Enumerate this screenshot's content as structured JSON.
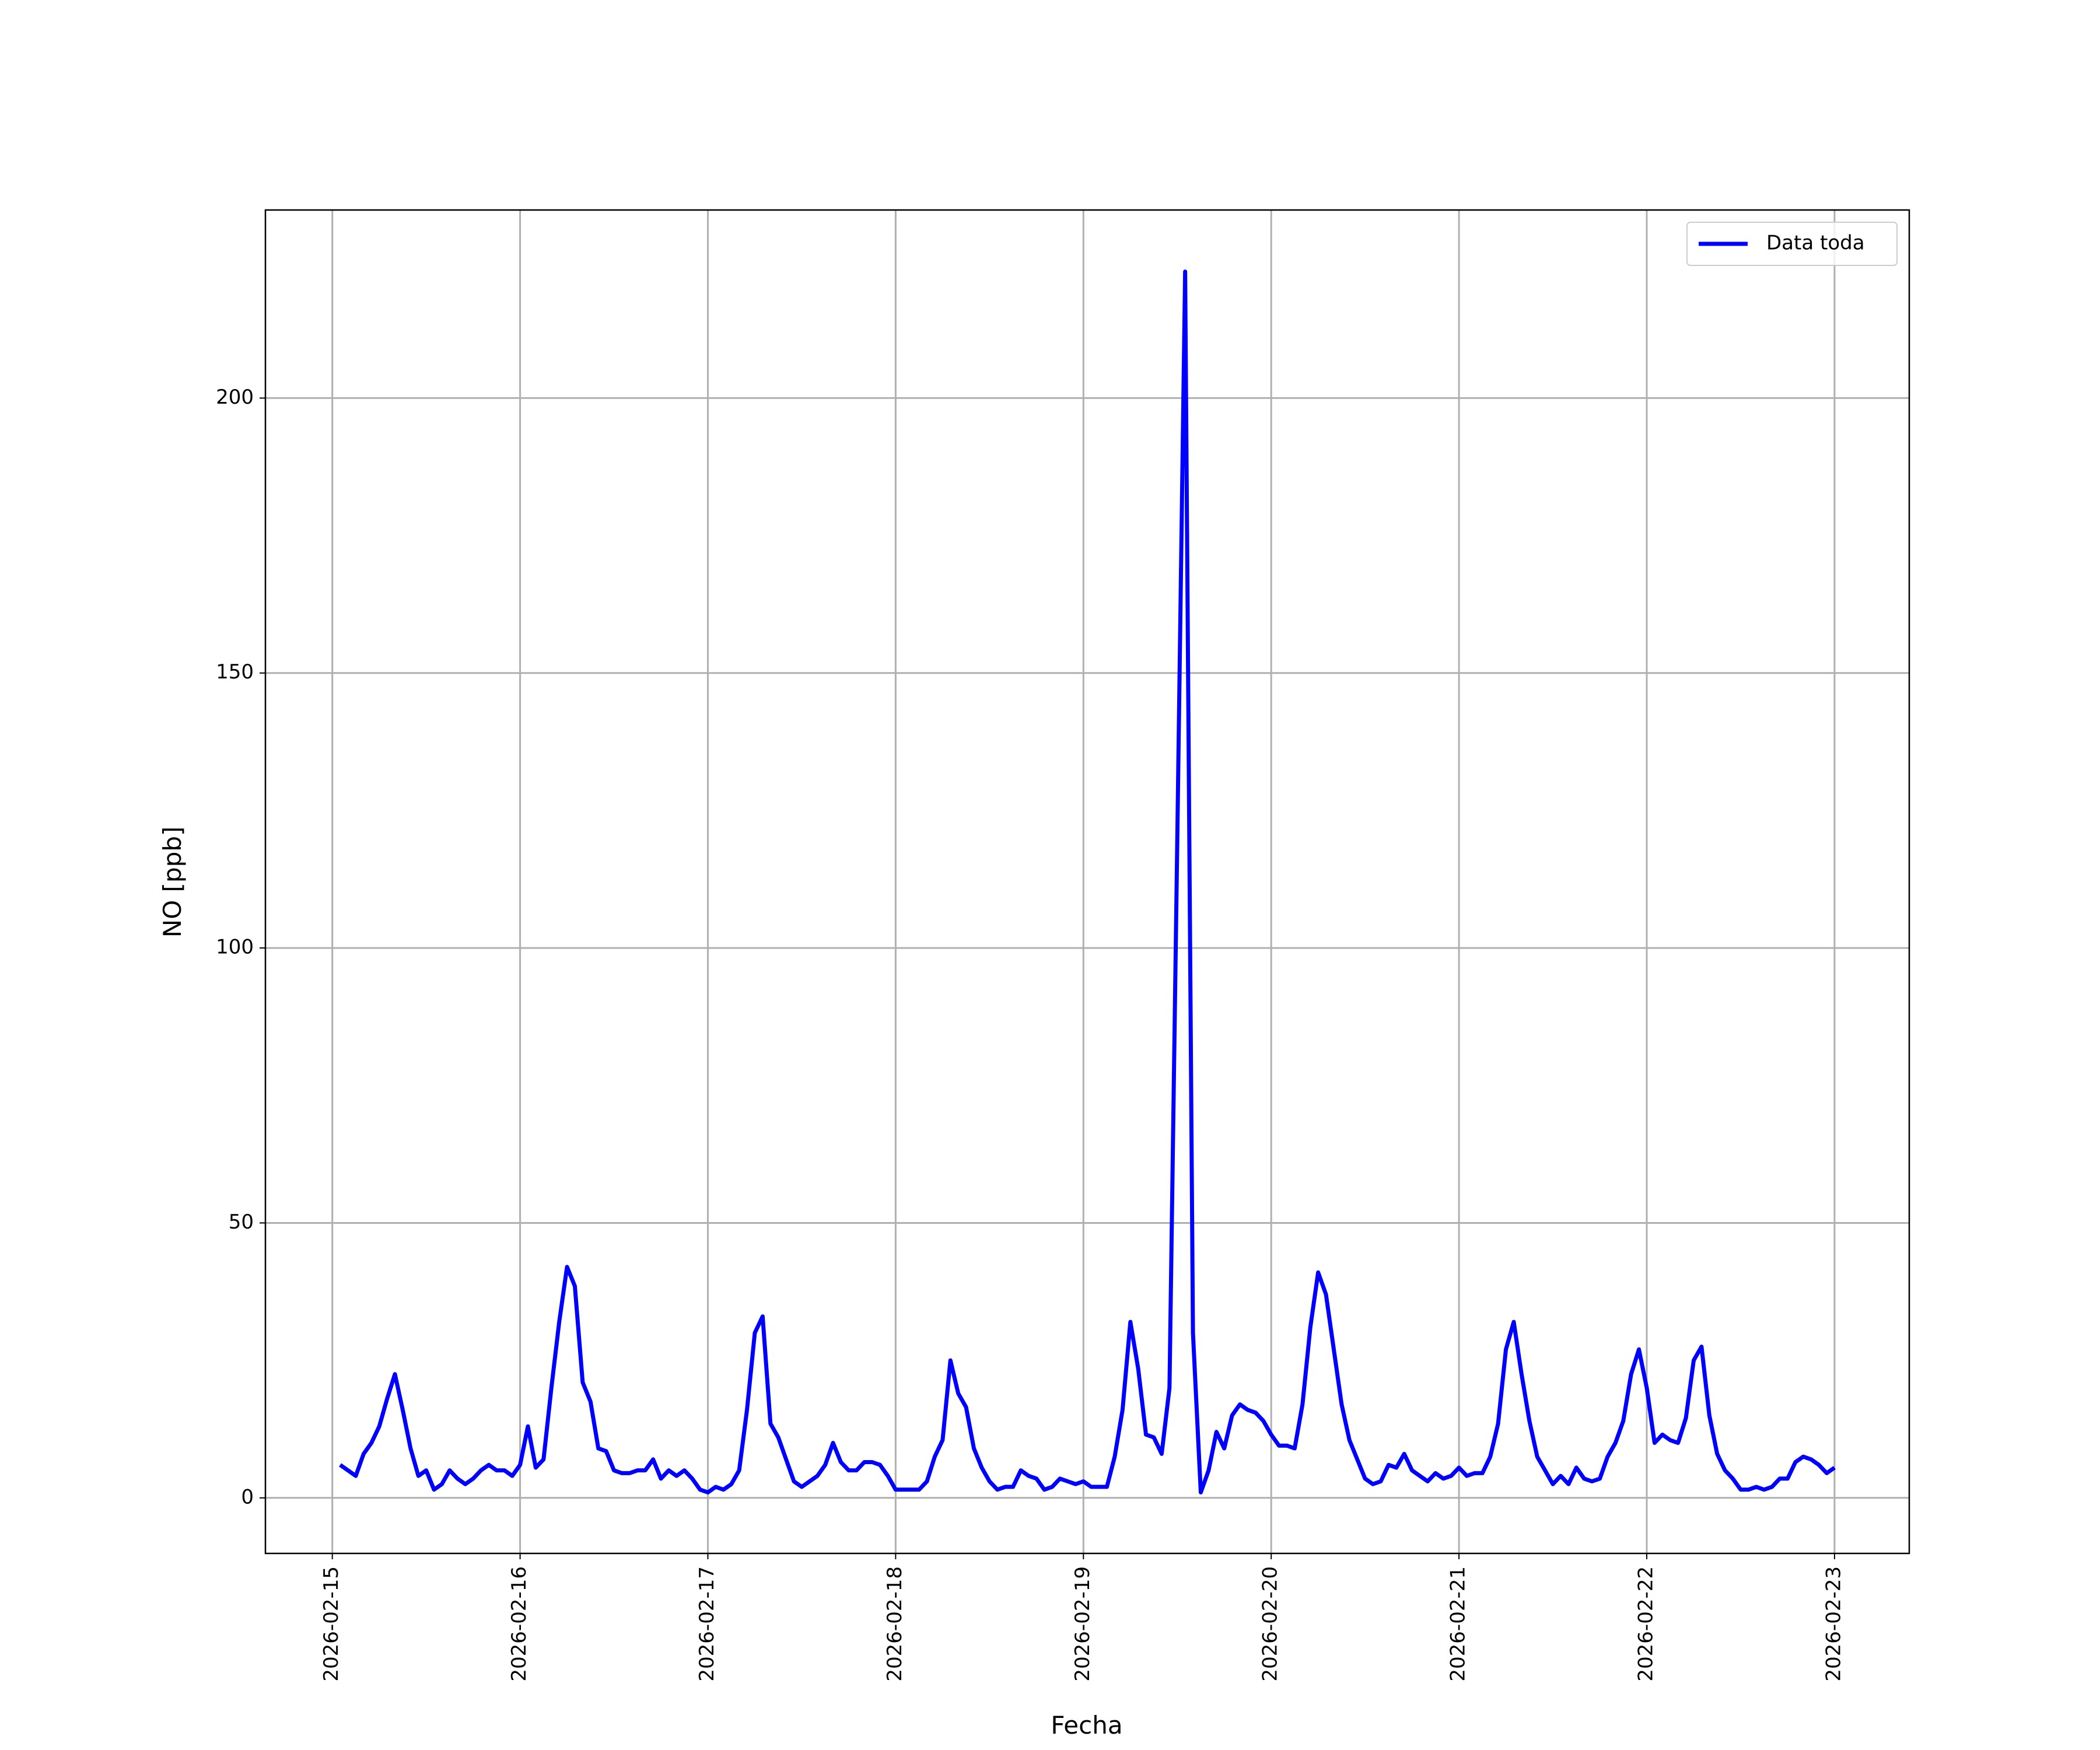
{
  "chart_data": {
    "type": "line",
    "xlabel": "Fecha",
    "ylabel": "NO [ppb]",
    "grid": true,
    "legend": "upper right",
    "x": [
      "2026-02-15 01:00",
      "2026-02-15 02:00",
      "2026-02-15 03:00",
      "2026-02-15 04:00",
      "2026-02-15 05:00",
      "2026-02-15 06:00",
      "2026-02-15 07:00",
      "2026-02-15 08:00",
      "2026-02-15 09:00",
      "2026-02-15 10:00",
      "2026-02-15 11:00",
      "2026-02-15 12:00",
      "2026-02-15 13:00",
      "2026-02-15 14:00",
      "2026-02-15 15:00",
      "2026-02-15 16:00",
      "2026-02-15 17:00",
      "2026-02-15 18:00",
      "2026-02-15 19:00",
      "2026-02-15 20:00",
      "2026-02-15 21:00",
      "2026-02-15 22:00",
      "2026-02-15 23:00",
      "2026-02-16 00:00",
      "2026-02-16 01:00",
      "2026-02-16 02:00",
      "2026-02-16 03:00",
      "2026-02-16 04:00",
      "2026-02-16 05:00",
      "2026-02-16 06:00",
      "2026-02-16 07:00",
      "2026-02-16 08:00",
      "2026-02-16 09:00",
      "2026-02-16 10:00",
      "2026-02-16 11:00",
      "2026-02-16 12:00",
      "2026-02-16 13:00",
      "2026-02-16 14:00",
      "2026-02-16 15:00",
      "2026-02-16 16:00",
      "2026-02-16 17:00",
      "2026-02-16 18:00",
      "2026-02-16 19:00",
      "2026-02-16 20:00",
      "2026-02-16 21:00",
      "2026-02-16 22:00",
      "2026-02-16 23:00",
      "2026-02-17 00:00",
      "2026-02-17 01:00",
      "2026-02-17 02:00",
      "2026-02-17 03:00",
      "2026-02-17 04:00",
      "2026-02-17 05:00",
      "2026-02-17 06:00",
      "2026-02-17 07:00",
      "2026-02-17 08:00",
      "2026-02-17 09:00",
      "2026-02-17 10:00",
      "2026-02-17 11:00",
      "2026-02-17 12:00",
      "2026-02-17 13:00",
      "2026-02-17 14:00",
      "2026-02-17 15:00",
      "2026-02-17 16:00",
      "2026-02-17 17:00",
      "2026-02-17 18:00",
      "2026-02-17 19:00",
      "2026-02-17 20:00",
      "2026-02-17 21:00",
      "2026-02-17 22:00",
      "2026-02-17 23:00",
      "2026-02-18 00:00",
      "2026-02-18 01:00",
      "2026-02-18 02:00",
      "2026-02-18 03:00",
      "2026-02-18 04:00",
      "2026-02-18 05:00",
      "2026-02-18 06:00",
      "2026-02-18 07:00",
      "2026-02-18 08:00",
      "2026-02-18 09:00",
      "2026-02-18 10:00",
      "2026-02-18 11:00",
      "2026-02-18 12:00",
      "2026-02-18 13:00",
      "2026-02-18 14:00",
      "2026-02-18 15:00",
      "2026-02-18 16:00",
      "2026-02-18 17:00",
      "2026-02-18 18:00",
      "2026-02-18 19:00",
      "2026-02-18 20:00",
      "2026-02-18 21:00",
      "2026-02-18 22:00",
      "2026-02-18 23:00",
      "2026-02-19 00:00",
      "2026-02-19 01:00",
      "2026-02-19 02:00",
      "2026-02-19 03:00",
      "2026-02-19 04:00",
      "2026-02-19 05:00",
      "2026-02-19 06:00",
      "2026-02-19 07:00",
      "2026-02-19 08:00",
      "2026-02-19 09:00",
      "2026-02-19 10:00",
      "2026-02-19 11:00",
      "2026-02-19 12:00",
      "2026-02-19 13:00",
      "2026-02-19 14:00",
      "2026-02-19 15:00",
      "2026-02-19 16:00",
      "2026-02-19 17:00",
      "2026-02-19 18:00",
      "2026-02-19 19:00",
      "2026-02-19 20:00",
      "2026-02-19 21:00",
      "2026-02-19 22:00",
      "2026-02-19 23:00",
      "2026-02-20 00:00",
      "2026-02-20 01:00",
      "2026-02-20 02:00",
      "2026-02-20 03:00",
      "2026-02-20 04:00",
      "2026-02-20 05:00",
      "2026-02-20 06:00",
      "2026-02-20 07:00",
      "2026-02-20 08:00",
      "2026-02-20 09:00",
      "2026-02-20 10:00",
      "2026-02-20 11:00",
      "2026-02-20 12:00",
      "2026-02-20 13:00",
      "2026-02-20 14:00",
      "2026-02-20 15:00",
      "2026-02-20 16:00",
      "2026-02-20 17:00",
      "2026-02-20 18:00",
      "2026-02-20 19:00",
      "2026-02-20 20:00",
      "2026-02-20 21:00",
      "2026-02-20 22:00",
      "2026-02-20 23:00",
      "2026-02-21 00:00",
      "2026-02-21 01:00",
      "2026-02-21 02:00",
      "2026-02-21 03:00",
      "2026-02-21 04:00",
      "2026-02-21 05:00",
      "2026-02-21 06:00",
      "2026-02-21 07:00",
      "2026-02-21 08:00",
      "2026-02-21 09:00",
      "2026-02-21 10:00",
      "2026-02-21 11:00",
      "2026-02-21 12:00",
      "2026-02-21 13:00",
      "2026-02-21 14:00",
      "2026-02-21 15:00",
      "2026-02-21 16:00",
      "2026-02-21 17:00",
      "2026-02-21 18:00",
      "2026-02-21 19:00",
      "2026-02-21 20:00",
      "2026-02-21 21:00",
      "2026-02-21 22:00",
      "2026-02-21 23:00",
      "2026-02-22 00:00",
      "2026-02-22 01:00",
      "2026-02-22 02:00",
      "2026-02-22 03:00",
      "2026-02-22 04:00",
      "2026-02-22 05:00",
      "2026-02-22 06:00",
      "2026-02-22 07:00",
      "2026-02-22 08:00",
      "2026-02-22 09:00",
      "2026-02-22 10:00",
      "2026-02-22 11:00",
      "2026-02-22 12:00",
      "2026-02-22 13:00",
      "2026-02-22 14:00",
      "2026-02-22 15:00",
      "2026-02-22 16:00",
      "2026-02-22 17:00",
      "2026-02-22 18:00",
      "2026-02-22 19:00",
      "2026-02-22 20:00",
      "2026-02-22 21:00",
      "2026-02-22 22:00",
      "2026-02-22 23:00",
      "2026-02-23 00:00"
    ],
    "series": [
      {
        "name": "Data toda",
        "color": "#0000ff",
        "values": [
          6,
          5,
          4,
          8,
          10,
          13,
          18,
          22.5,
          16,
          9,
          4,
          5,
          1.5,
          2.5,
          5,
          3.5,
          2.5,
          3.5,
          5,
          6,
          5,
          5,
          4,
          6,
          13,
          5.5,
          7,
          20,
          32,
          42,
          38.5,
          21,
          17.5,
          9,
          8.5,
          5,
          4.5,
          4.5,
          5,
          5,
          7,
          3.5,
          5,
          4,
          5,
          3.5,
          1.5,
          1,
          2,
          1.5,
          2.5,
          5,
          16,
          30,
          33,
          13.5,
          11,
          7,
          3,
          2,
          3,
          4,
          6,
          10,
          6.5,
          5,
          5,
          6.5,
          6.5,
          6,
          4,
          1.5,
          1.5,
          1.5,
          1.5,
          3,
          7.5,
          10.5,
          25,
          19,
          16.5,
          9,
          5.5,
          3,
          1.5,
          2,
          2,
          5,
          4,
          3.5,
          1.5,
          2,
          3.5,
          3,
          2.5,
          3,
          2,
          2,
          2,
          7.5,
          16,
          32,
          23.5,
          11.5,
          11,
          8,
          20,
          120,
          223,
          30,
          1,
          5,
          12,
          9,
          15,
          17,
          16,
          15.5,
          14,
          11.5,
          9.5,
          9.5,
          9,
          17,
          31,
          41,
          37,
          27,
          17,
          10.5,
          7,
          3.5,
          2.5,
          3,
          6,
          5.5,
          8,
          5,
          4,
          3,
          4.5,
          3.5,
          4,
          5.5,
          4,
          4.5,
          4.5,
          7.5,
          13.5,
          27,
          32,
          22.5,
          14,
          7.5,
          5,
          2.5,
          4,
          2.5,
          5.5,
          3.5,
          3,
          3.5,
          7.5,
          10,
          14,
          22.5,
          27,
          20,
          10,
          11.5,
          10.5,
          10,
          14.5,
          25,
          27.5,
          15,
          8,
          5,
          3.5,
          1.5,
          1.5,
          2,
          1.5,
          2,
          3.5,
          3.5,
          6.5,
          7.5,
          7,
          6,
          4.5,
          5.5
        ]
      }
    ],
    "xlim": [
      "2026-02-14 15:27",
      "2026-02-23 09:33"
    ],
    "xticks": [
      "2026-02-15",
      "2026-02-16",
      "2026-02-17",
      "2026-02-18",
      "2026-02-19",
      "2026-02-20",
      "2026-02-21",
      "2026-02-22",
      "2026-02-23"
    ],
    "ylim": [
      -10.1,
      234.2
    ],
    "yticks": [
      0,
      50,
      100,
      150,
      200
    ]
  }
}
